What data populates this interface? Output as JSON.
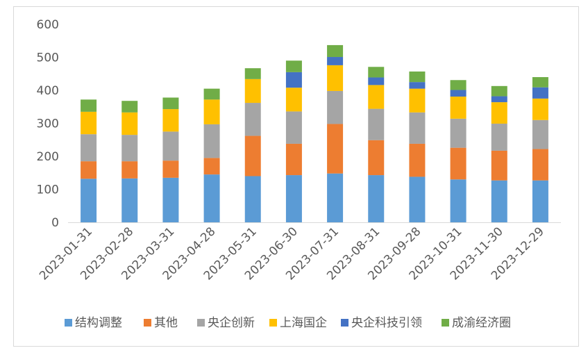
{
  "chart_data": {
    "type": "bar",
    "stacked": true,
    "title": "",
    "xlabel": "",
    "ylabel": "",
    "ylim": [
      0,
      600
    ],
    "yticks": [
      0,
      100,
      200,
      300,
      400,
      500,
      600
    ],
    "grid": false,
    "legend_position": "bottom",
    "categories": [
      "2023-01-31",
      "2023-02-28",
      "2023-03-31",
      "2023-04-28",
      "2023-05-31",
      "2023-06-30",
      "2023-07-31",
      "2023-08-31",
      "2023-09-28",
      "2023-10-31",
      "2023-11-30",
      "2023-12-29"
    ],
    "series": [
      {
        "name": "结构调整",
        "color": "#5B9BD5",
        "values": [
          132,
          133,
          135,
          145,
          140,
          143,
          148,
          143,
          138,
          130,
          127,
          127
        ]
      },
      {
        "name": "其他",
        "color": "#ED7D31",
        "values": [
          53,
          52,
          52,
          50,
          122,
          95,
          150,
          106,
          100,
          96,
          90,
          95
        ]
      },
      {
        "name": "央企创新",
        "color": "#A5A5A5",
        "values": [
          82,
          80,
          88,
          102,
          100,
          98,
          100,
          95,
          95,
          88,
          82,
          88
        ]
      },
      {
        "name": "上海国企",
        "color": "#FFC000",
        "values": [
          68,
          68,
          68,
          75,
          72,
          72,
          78,
          72,
          72,
          67,
          65,
          65
        ]
      },
      {
        "name": "央企科技引领",
        "color": "#4472C4",
        "values": [
          0,
          0,
          0,
          0,
          0,
          47,
          25,
          23,
          20,
          20,
          18,
          34
        ]
      },
      {
        "name": "成渝经济圈",
        "color": "#70AD47",
        "values": [
          37,
          35,
          35,
          33,
          33,
          35,
          36,
          32,
          32,
          30,
          31,
          31
        ]
      }
    ]
  }
}
